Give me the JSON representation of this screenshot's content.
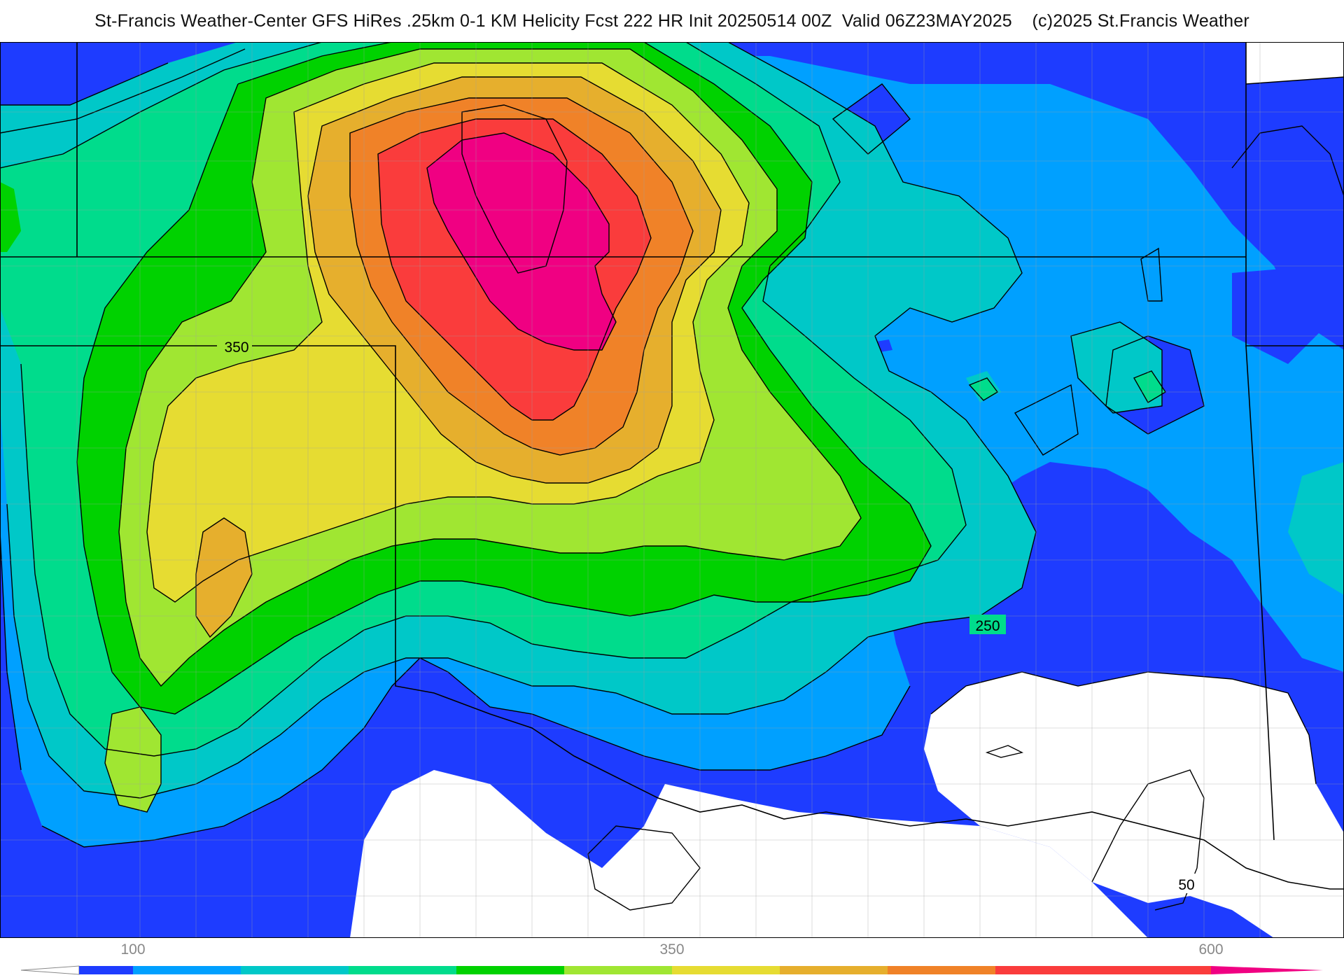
{
  "title": "St-Francis Weather-Center GFS HiRes .25km 0-1 KM Helicity Fcst 222 HR Init 20250514 00Z  Valid 06Z23MAY2025    (c)2025 St.Francis Weather",
  "map": {
    "field": "0-1 KM Helicity",
    "contour_labels": [
      {
        "text": "350"
      },
      {
        "text": "250"
      },
      {
        "text": "50"
      }
    ],
    "colors": {
      "bin_50_75": "#1e3cff",
      "bin_75_100": "#1e3cff",
      "bin_100_150": "#00a0ff",
      "bin_150_200": "#00c8c8",
      "bin_200_250": "#00dc8c",
      "bin_250_300": "#00d200",
      "bin_300_350": "#a0e632",
      "bin_350_400": "#e6dc32",
      "bin_400_450": "#e6af2d",
      "bin_450_500": "#f08228",
      "bin_500_600": "#fa3c3c",
      "bin_600_plus": "#f00082",
      "below_50": "#ffffff",
      "contour_line": "#000000",
      "state_border": "#000000",
      "county_border": "#a0a0a0"
    }
  },
  "colorbar": {
    "labels": [
      {
        "text": "100",
        "value": 100
      },
      {
        "text": "350",
        "value": 350
      },
      {
        "text": "600",
        "value": 600
      }
    ],
    "bins": [
      {
        "from": 75,
        "to": 100,
        "color": "#1e3cff"
      },
      {
        "from": 100,
        "to": 150,
        "color": "#00a0ff"
      },
      {
        "from": 150,
        "to": 200,
        "color": "#00c8c8"
      },
      {
        "from": 200,
        "to": 250,
        "color": "#00dc8c"
      },
      {
        "from": 250,
        "to": 300,
        "color": "#00d200"
      },
      {
        "from": 300,
        "to": 350,
        "color": "#a0e632"
      },
      {
        "from": 350,
        "to": 400,
        "color": "#e6dc32"
      },
      {
        "from": 400,
        "to": 450,
        "color": "#e6af2d"
      },
      {
        "from": 450,
        "to": 500,
        "color": "#f08228"
      },
      {
        "from": 500,
        "to": 600,
        "color": "#fa3c3c"
      }
    ],
    "low_end_color": "#ffffff",
    "high_end_color": "#f00082"
  }
}
